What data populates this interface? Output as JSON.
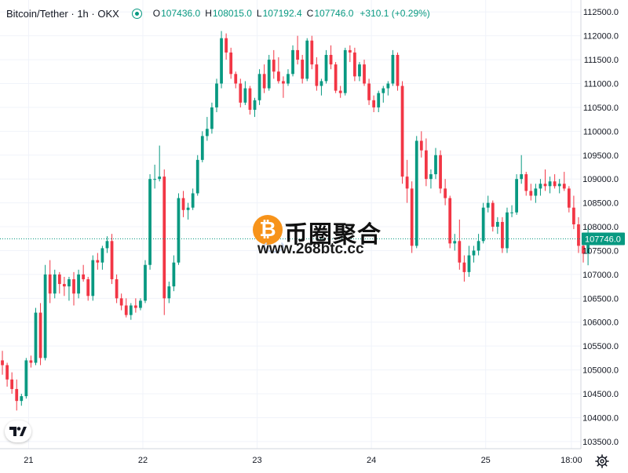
{
  "header": {
    "symbol": "Bitcoin/Tether · 1h · OKX",
    "ohlc": [
      {
        "key": "O",
        "value": "107436.0"
      },
      {
        "key": "H",
        "value": "108015.0"
      },
      {
        "key": "L",
        "value": "107192.4"
      },
      {
        "key": "C",
        "value": "107746.0"
      }
    ],
    "change": "+310.1 (+0.29%)"
  },
  "watermark": {
    "text_cn": "币圈聚合",
    "url": "www.268btc.cc",
    "coin_symbol": "₿"
  },
  "colors": {
    "up": "#089981",
    "down": "#f23645",
    "grid": "#f0f3fa",
    "axis_text": "#131722",
    "price_line": "#089981"
  },
  "icons": {
    "logo": "tradingview-logo-icon",
    "settings": "gear-icon",
    "status": "market-open-dot-icon"
  },
  "chart_data": {
    "type": "candlestick",
    "interval": "1h",
    "ylim": [
      103350,
      112750
    ],
    "yticks": [
      "112500.0",
      "112000.0",
      "111500.0",
      "111000.0",
      "110500.0",
      "110000.0",
      "109500.0",
      "109000.0",
      "108500.0",
      "108000.0",
      "107500.0",
      "107000.0",
      "106500.0",
      "106000.0",
      "105500.0",
      "105000.0",
      "104500.0",
      "104000.0",
      "103500.0"
    ],
    "ytick_values": [
      112500,
      112000,
      111500,
      111000,
      110500,
      110000,
      109500,
      109000,
      108500,
      108000,
      107500,
      107000,
      106500,
      106000,
      105500,
      105000,
      104500,
      104000,
      103500
    ],
    "xlim": [
      0,
      122
    ],
    "xticks": [
      "21",
      "22",
      "23",
      "24",
      "25",
      "18:00"
    ],
    "xtick_values": [
      6,
      30,
      54,
      78,
      102,
      120
    ],
    "last_price": {
      "value": 107746.0,
      "label": "107746.0"
    },
    "grid": true,
    "candles": [
      [
        105200,
        105400,
        104900,
        105100
      ],
      [
        105100,
        105150,
        104650,
        104800
      ],
      [
        104800,
        104950,
        104500,
        104600
      ],
      [
        104600,
        104800,
        104150,
        104350
      ],
      [
        104350,
        104500,
        104250,
        104450
      ],
      [
        104450,
        105250,
        104400,
        105200
      ],
      [
        105200,
        105300,
        105050,
        105150
      ],
      [
        105150,
        106300,
        105100,
        106200
      ],
      [
        106200,
        106400,
        105100,
        105250
      ],
      [
        105250,
        107200,
        105200,
        107000
      ],
      [
        107000,
        107300,
        106400,
        106600
      ],
      [
        106600,
        107100,
        106500,
        107000
      ],
      [
        107000,
        107050,
        106600,
        106800
      ],
      [
        106800,
        106950,
        106550,
        106750
      ],
      [
        106750,
        106950,
        106450,
        106900
      ],
      [
        106900,
        107050,
        106350,
        106600
      ],
      [
        106600,
        107100,
        106500,
        107000
      ],
      [
        107000,
        107200,
        106850,
        106900
      ],
      [
        106900,
        106950,
        106450,
        106550
      ],
      [
        106550,
        107400,
        106450,
        107300
      ],
      [
        107300,
        107450,
        107100,
        107250
      ],
      [
        107250,
        107600,
        107100,
        107550
      ],
      [
        107550,
        107800,
        107450,
        107700
      ],
      [
        107700,
        107850,
        106800,
        106900
      ],
      [
        106900,
        107000,
        106400,
        106500
      ],
      [
        106500,
        106600,
        106250,
        106350
      ],
      [
        106350,
        106500,
        106100,
        106150
      ],
      [
        106150,
        106400,
        106050,
        106350
      ],
      [
        106350,
        106500,
        106200,
        106300
      ],
      [
        106300,
        106500,
        106250,
        106450
      ],
      [
        106450,
        107300,
        106400,
        107200
      ],
      [
        107200,
        109100,
        107100,
        109000
      ],
      [
        109000,
        109300,
        108800,
        109000
      ],
      [
        109000,
        109700,
        108950,
        109050
      ],
      [
        109050,
        109200,
        106150,
        106500
      ],
      [
        106500,
        106850,
        106400,
        106750
      ],
      [
        106750,
        107400,
        106650,
        107250
      ],
      [
        107250,
        108700,
        107200,
        108600
      ],
      [
        108600,
        108750,
        108200,
        108350
      ],
      [
        108350,
        108500,
        108150,
        108400
      ],
      [
        108400,
        108800,
        108350,
        108700
      ],
      [
        108700,
        109500,
        108650,
        109400
      ],
      [
        109400,
        110000,
        109350,
        109900
      ],
      [
        109900,
        110300,
        109800,
        110050
      ],
      [
        110050,
        110600,
        109950,
        110500
      ],
      [
        110500,
        111100,
        110400,
        111000
      ],
      [
        111000,
        112100,
        110900,
        111950
      ],
      [
        111950,
        112050,
        111500,
        111650
      ],
      [
        111650,
        111750,
        111100,
        111200
      ],
      [
        111200,
        111250,
        110900,
        111000
      ],
      [
        111000,
        111100,
        110500,
        110600
      ],
      [
        110600,
        111050,
        110550,
        110900
      ],
      [
        110900,
        110950,
        110350,
        110450
      ],
      [
        110450,
        110700,
        110300,
        110650
      ],
      [
        110650,
        111300,
        110550,
        111200
      ],
      [
        111200,
        111400,
        110800,
        110900
      ],
      [
        110900,
        111600,
        110850,
        111500
      ],
      [
        111500,
        111700,
        111100,
        111250
      ],
      [
        111250,
        111550,
        111000,
        111050
      ],
      [
        111050,
        111150,
        110700,
        111000
      ],
      [
        111000,
        111300,
        110950,
        111200
      ],
      [
        111200,
        111800,
        111150,
        111700
      ],
      [
        111700,
        112000,
        111400,
        111500
      ],
      [
        111500,
        111600,
        111000,
        111100
      ],
      [
        111100,
        111950,
        111050,
        111900
      ],
      [
        111900,
        112000,
        111300,
        111400
      ],
      [
        111400,
        111550,
        110850,
        110950
      ],
      [
        110950,
        111100,
        110750,
        111050
      ],
      [
        111050,
        111700,
        111000,
        111600
      ],
      [
        111600,
        111800,
        111300,
        111400
      ],
      [
        111400,
        111450,
        110800,
        110850
      ],
      [
        110850,
        110950,
        110700,
        110800
      ],
      [
        110800,
        111750,
        110750,
        111700
      ],
      [
        111700,
        111800,
        111450,
        111650
      ],
      [
        111650,
        111750,
        111050,
        111150
      ],
      [
        111150,
        111450,
        111050,
        111400
      ],
      [
        111400,
        111500,
        110950,
        111000
      ],
      [
        111000,
        111100,
        110550,
        110650
      ],
      [
        110650,
        110750,
        110400,
        110500
      ],
      [
        110500,
        110850,
        110400,
        110800
      ],
      [
        110800,
        110950,
        110600,
        110900
      ],
      [
        110900,
        111050,
        110750,
        111000
      ],
      [
        111000,
        111700,
        110950,
        111600
      ],
      [
        111600,
        111650,
        110850,
        110950
      ],
      [
        110950,
        111050,
        108900,
        109050
      ],
      [
        109050,
        109400,
        108500,
        108800
      ],
      [
        108800,
        108950,
        107450,
        107600
      ],
      [
        107600,
        109900,
        107550,
        109800
      ],
      [
        109800,
        110000,
        109450,
        109600
      ],
      [
        109600,
        109850,
        108850,
        109000
      ],
      [
        109000,
        109200,
        108800,
        109100
      ],
      [
        109100,
        109650,
        109000,
        109500
      ],
      [
        109500,
        109600,
        108700,
        108800
      ],
      [
        108800,
        109000,
        108450,
        108600
      ],
      [
        108600,
        108650,
        107550,
        107650
      ],
      [
        107650,
        107850,
        107500,
        107700
      ],
      [
        107700,
        108150,
        107100,
        107250
      ],
      [
        107250,
        107400,
        106850,
        107050
      ],
      [
        107050,
        107600,
        106950,
        107400
      ],
      [
        107400,
        107600,
        107250,
        107500
      ],
      [
        107500,
        107850,
        107400,
        107700
      ],
      [
        107700,
        108500,
        107650,
        108400
      ],
      [
        108400,
        108650,
        108300,
        108500
      ],
      [
        108500,
        108550,
        107900,
        108000
      ],
      [
        108000,
        108200,
        107850,
        108100
      ],
      [
        108100,
        108200,
        107450,
        107550
      ],
      [
        107550,
        108400,
        107450,
        108300
      ],
      [
        108300,
        108450,
        108200,
        108300
      ],
      [
        108300,
        109100,
        108250,
        109000
      ],
      [
        109000,
        109500,
        108900,
        109100
      ],
      [
        109100,
        109150,
        108650,
        108750
      ],
      [
        108750,
        108900,
        108550,
        108650
      ],
      [
        108650,
        108900,
        108500,
        108800
      ],
      [
        108800,
        109000,
        108650,
        108900
      ],
      [
        108900,
        109200,
        108750,
        108850
      ],
      [
        108850,
        109050,
        108700,
        108950
      ],
      [
        108950,
        109100,
        108800,
        108850
      ],
      [
        108850,
        109000,
        108700,
        108900
      ],
      [
        108900,
        109150,
        108750,
        108800
      ],
      [
        108800,
        108850,
        108300,
        108400
      ],
      [
        108400,
        108650,
        107950,
        108050
      ],
      [
        108050,
        108200,
        107450,
        107600
      ],
      [
        107600,
        107750,
        107250,
        107436
      ],
      [
        107436,
        108015,
        107192.4,
        107746
      ]
    ]
  }
}
